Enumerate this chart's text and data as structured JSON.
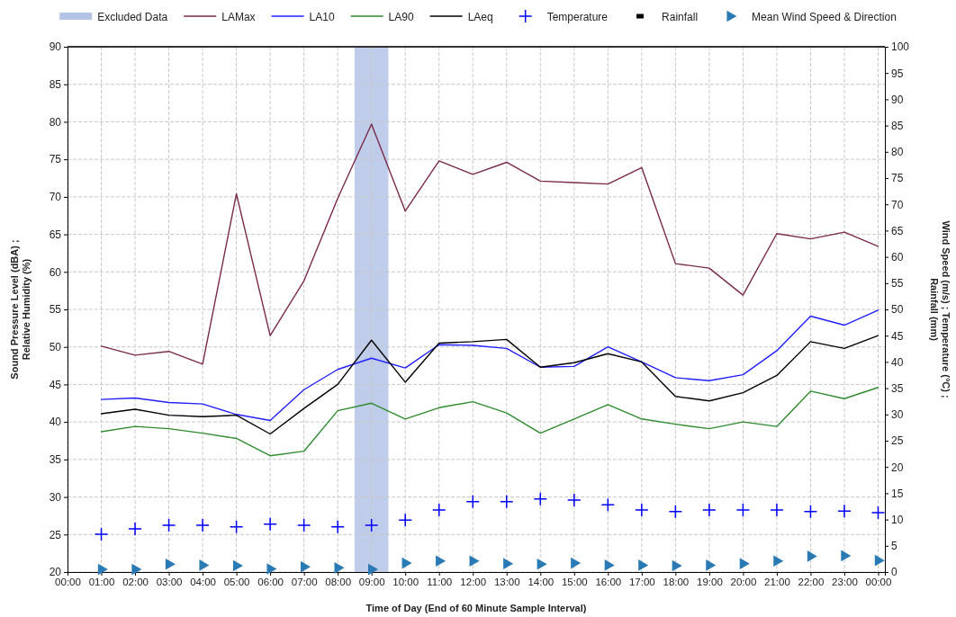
{
  "chart_data": {
    "type": "line",
    "xlabel": "Time of Day (End of 60 Minute Sample Interval)",
    "ylabel": "Sound Pressure Level (dBA) ;\nRelative Humidity (%)",
    "y2label": "Wind Speed (m/s) ; Temperature (°C) ;\nRainfall (mm)",
    "x": [
      1,
      2,
      3,
      4,
      5,
      6,
      7,
      8,
      9,
      10,
      11,
      12,
      13,
      14,
      15,
      16,
      17,
      18,
      19,
      20,
      21,
      22,
      23,
      24
    ],
    "xlim": [
      0,
      24.2
    ],
    "xticks": [
      {
        "value": 0,
        "label": "00:00"
      },
      {
        "value": 1,
        "label": "01:00"
      },
      {
        "value": 2,
        "label": "02:00"
      },
      {
        "value": 3,
        "label": "03:00"
      },
      {
        "value": 4,
        "label": "04:00"
      },
      {
        "value": 5,
        "label": "05:00"
      },
      {
        "value": 6,
        "label": "06:00"
      },
      {
        "value": 7,
        "label": "07:00"
      },
      {
        "value": 8,
        "label": "08:00"
      },
      {
        "value": 9,
        "label": "09:00"
      },
      {
        "value": 10,
        "label": "10:00"
      },
      {
        "value": 11,
        "label": "11:00"
      },
      {
        "value": 12,
        "label": "12:00"
      },
      {
        "value": 13,
        "label": "13:00"
      },
      {
        "value": 14,
        "label": "14:00"
      },
      {
        "value": 15,
        "label": "15:00"
      },
      {
        "value": 16,
        "label": "16:00"
      },
      {
        "value": 17,
        "label": "17:00"
      },
      {
        "value": 18,
        "label": "18:00"
      },
      {
        "value": 19,
        "label": "19:00"
      },
      {
        "value": 20,
        "label": "20:00"
      },
      {
        "value": 21,
        "label": "21:00"
      },
      {
        "value": 22,
        "label": "22:00"
      },
      {
        "value": 23,
        "label": "23:00"
      },
      {
        "value": 24,
        "label": "00:00"
      }
    ],
    "ylim": [
      20,
      90
    ],
    "yticks": [
      20,
      25,
      30,
      35,
      40,
      45,
      50,
      55,
      60,
      65,
      70,
      75,
      80,
      85,
      90
    ],
    "y2lim": [
      0,
      100
    ],
    "y2ticks": [
      0,
      5,
      10,
      15,
      20,
      25,
      30,
      35,
      40,
      45,
      50,
      55,
      60,
      65,
      70,
      75,
      80,
      85,
      90,
      95,
      100
    ],
    "grid": true,
    "legend": "top",
    "bands": [
      {
        "axis": "x",
        "from": 8.5,
        "to": 9.5,
        "label": "Excluded Data",
        "color": "#b4c3e6"
      }
    ],
    "series": [
      {
        "name": "LAMax",
        "color": "#7a2a4a",
        "values": [
          50.1,
          48.9,
          49.4,
          47.7,
          70.4,
          51.5,
          58.8,
          69.8,
          79.7,
          68.1,
          74.8,
          73.0,
          74.6,
          72.1,
          71.9,
          71.7,
          73.9,
          61.1,
          60.5,
          56.9,
          65.1,
          64.4,
          65.3,
          63.4
        ]
      },
      {
        "name": "LA10",
        "color": "#2020ff",
        "values": [
          43.0,
          43.2,
          42.6,
          42.4,
          41.0,
          40.2,
          44.3,
          47.0,
          48.5,
          47.2,
          50.3,
          50.2,
          49.8,
          47.3,
          47.4,
          50.0,
          48.0,
          45.9,
          45.5,
          46.3,
          49.5,
          54.1,
          52.9,
          54.9
        ]
      },
      {
        "name": "LA90",
        "color": "#2e8b2e",
        "values": [
          38.7,
          39.4,
          39.1,
          38.5,
          37.8,
          35.5,
          36.1,
          41.5,
          42.5,
          40.4,
          41.9,
          42.7,
          41.2,
          38.5,
          40.4,
          42.3,
          40.4,
          39.7,
          39.1,
          40.0,
          39.4,
          44.1,
          43.1,
          44.6
        ]
      },
      {
        "name": "LAeq",
        "color": "#000000",
        "values": [
          41.1,
          41.7,
          40.9,
          40.7,
          40.9,
          38.4,
          41.8,
          45.0,
          50.9,
          45.3,
          50.5,
          50.7,
          51.0,
          47.3,
          47.9,
          49.1,
          48.0,
          43.4,
          42.8,
          43.9,
          46.2,
          50.7,
          49.8,
          51.5
        ]
      },
      {
        "name": "Temperature",
        "type": "scatter",
        "axis": "y2",
        "marker": "cross",
        "color": "#0000ff",
        "values": [
          7.2,
          8.2,
          8.9,
          8.9,
          8.6,
          9.1,
          8.9,
          8.6,
          8.9,
          9.9,
          11.8,
          13.4,
          13.4,
          13.9,
          13.7,
          12.8,
          11.8,
          11.5,
          11.8,
          11.8,
          11.8,
          11.5,
          11.6,
          11.3
        ]
      },
      {
        "name": "Rainfall",
        "type": "bar",
        "axis": "y2",
        "color": "#000000",
        "values": [
          null,
          null,
          null,
          null,
          null,
          null,
          null,
          null,
          null,
          null,
          null,
          null,
          null,
          null,
          null,
          null,
          null,
          null,
          null,
          null,
          null,
          null,
          null,
          null
        ]
      },
      {
        "name": "Mean Wind Speed & Direction",
        "type": "scatter",
        "axis": "y2",
        "marker": "triangle",
        "color": "#2a7ab5",
        "values": [
          0.5,
          0.5,
          1.5,
          1.3,
          1.2,
          0.6,
          1.0,
          0.8,
          0.5,
          1.7,
          2.1,
          2.1,
          1.6,
          1.5,
          1.7,
          1.3,
          1.3,
          1.2,
          1.3,
          1.6,
          2.1,
          3.0,
          3.1,
          2.2
        ]
      }
    ]
  }
}
